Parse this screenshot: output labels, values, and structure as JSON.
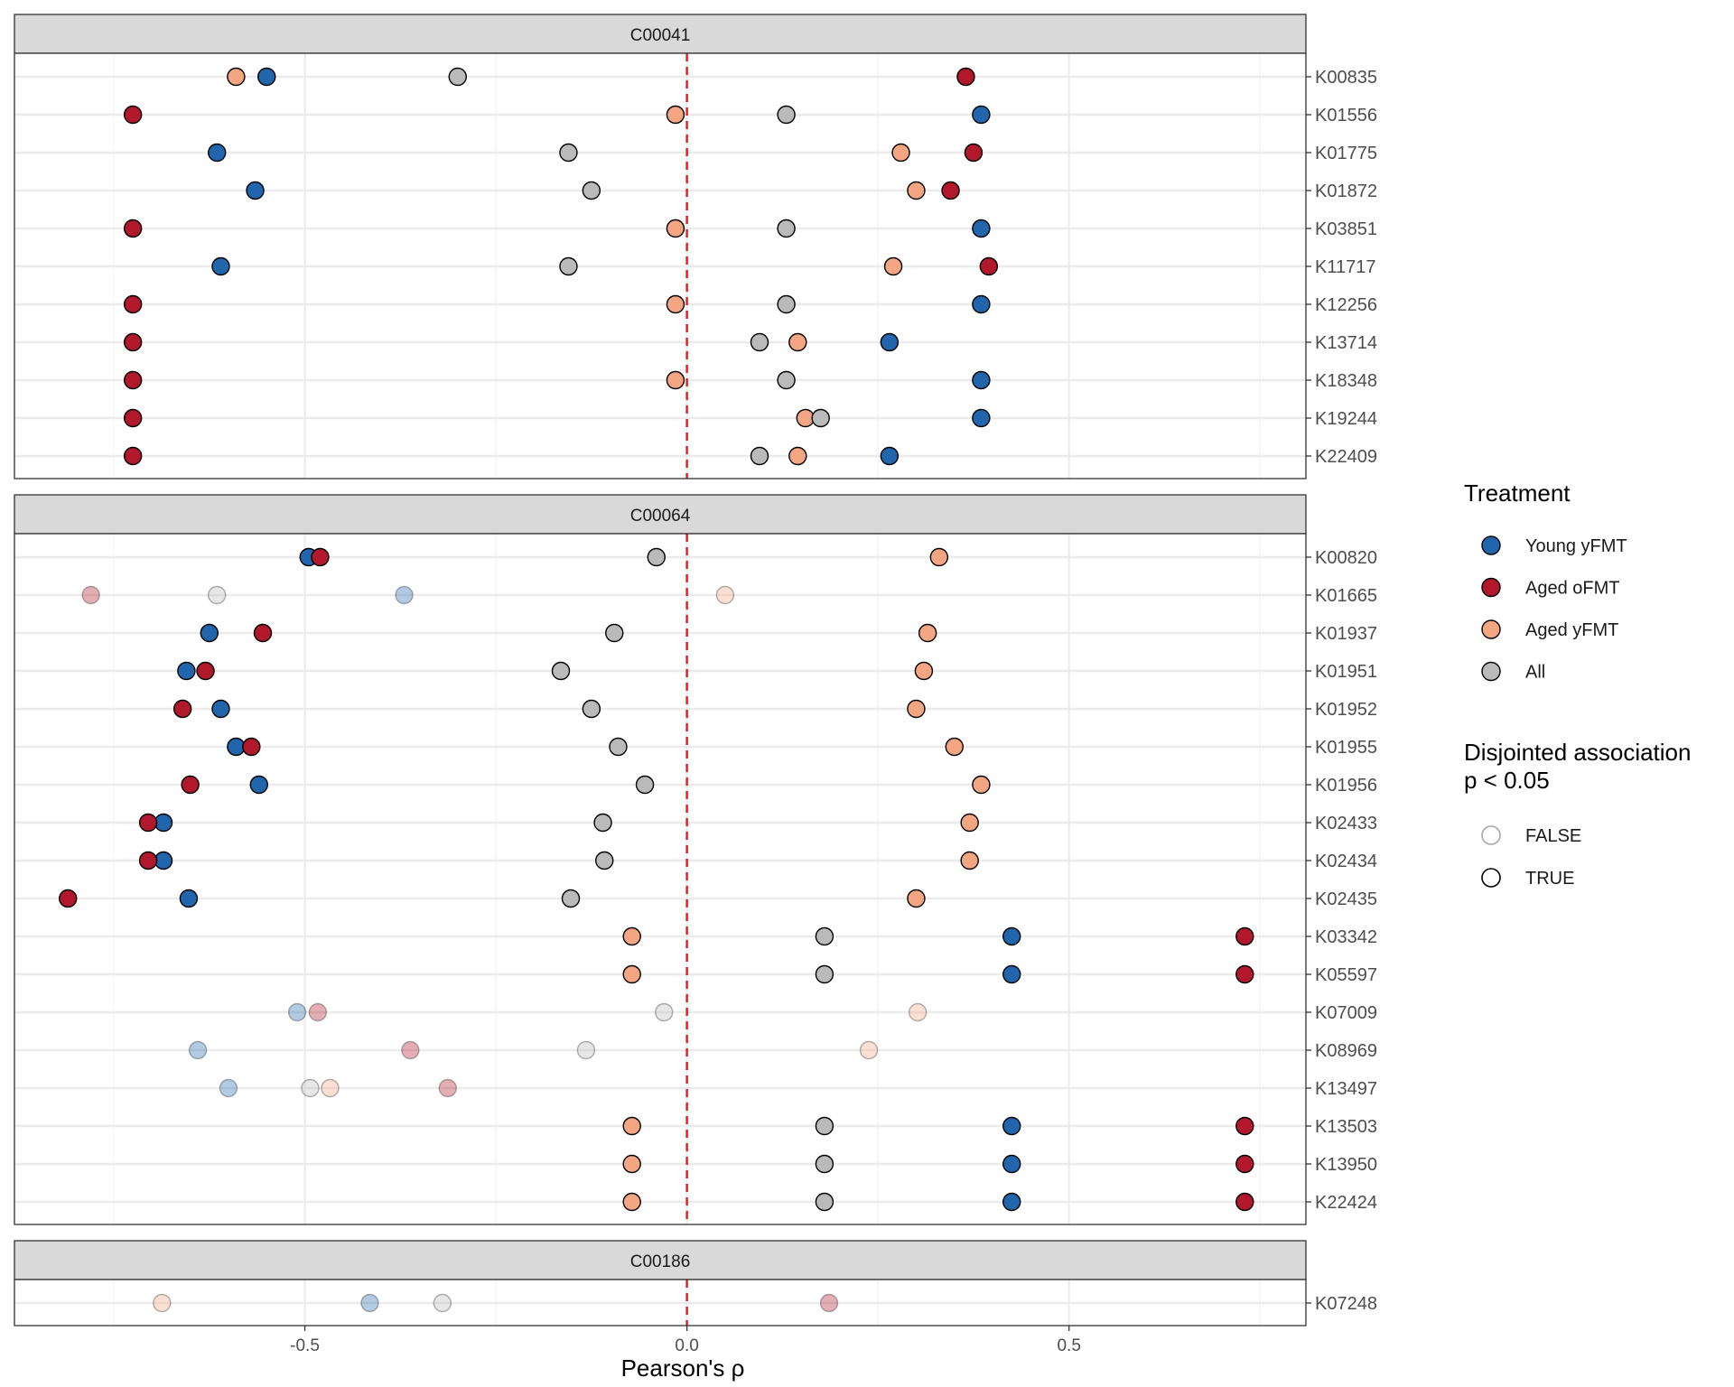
{
  "chart_data": {
    "type": "scatter",
    "xlabel": "Pearson's ρ",
    "xlim": [
      -0.88,
      0.81
    ],
    "x_ticks": [
      -0.5,
      0.0,
      0.5
    ],
    "x_tick_labels": [
      "-0.5",
      "0.0",
      "0.5"
    ],
    "reference_line": {
      "x": 0,
      "color": "#e41a1c",
      "style": "dashed"
    },
    "legend": {
      "treatment_title": "Treatment",
      "treatment": [
        {
          "name": "Young yFMT",
          "color": "#2166ac"
        },
        {
          "name": "Aged oFMT",
          "color": "#b2182b"
        },
        {
          "name": "Aged yFMT",
          "color": "#f4a582"
        },
        {
          "name": "All",
          "color": "#bababa"
        }
      ],
      "sig_title_line1": "Disjointed association",
      "sig_title_line2": "p < 0.05",
      "sig": [
        {
          "name": "FALSE"
        },
        {
          "name": "TRUE"
        }
      ]
    },
    "panels": [
      {
        "title": "C00041",
        "rows": [
          {
            "label": "K00835",
            "sig": true,
            "yfmt": -0.55,
            "ofmt": 0.365,
            "ayfmt": -0.59,
            "all": -0.3
          },
          {
            "label": "K01556",
            "sig": true,
            "yfmt": 0.385,
            "ofmt": -0.725,
            "ayfmt": -0.015,
            "all": 0.13
          },
          {
            "label": "K01775",
            "sig": true,
            "yfmt": -0.615,
            "ofmt": 0.375,
            "ayfmt": 0.28,
            "all": -0.155
          },
          {
            "label": "K01872",
            "sig": true,
            "yfmt": -0.565,
            "ofmt": 0.345,
            "ayfmt": 0.3,
            "all": -0.125
          },
          {
            "label": "K03851",
            "sig": true,
            "yfmt": 0.385,
            "ofmt": -0.725,
            "ayfmt": -0.015,
            "all": 0.13
          },
          {
            "label": "K11717",
            "sig": true,
            "yfmt": -0.61,
            "ofmt": 0.395,
            "ayfmt": 0.27,
            "all": -0.155
          },
          {
            "label": "K12256",
            "sig": true,
            "yfmt": 0.385,
            "ofmt": -0.725,
            "ayfmt": -0.015,
            "all": 0.13
          },
          {
            "label": "K13714",
            "sig": true,
            "yfmt": 0.265,
            "ofmt": -0.725,
            "ayfmt": 0.145,
            "all": 0.095
          },
          {
            "label": "K18348",
            "sig": true,
            "yfmt": 0.385,
            "ofmt": -0.725,
            "ayfmt": -0.015,
            "all": 0.13
          },
          {
            "label": "K19244",
            "sig": true,
            "yfmt": 0.385,
            "ofmt": -0.725,
            "ayfmt": 0.155,
            "all": 0.175
          },
          {
            "label": "K22409",
            "sig": true,
            "yfmt": 0.265,
            "ofmt": -0.725,
            "ayfmt": 0.145,
            "all": 0.095
          }
        ]
      },
      {
        "title": "C00064",
        "rows": [
          {
            "label": "K00820",
            "sig": true,
            "yfmt": -0.495,
            "ofmt": -0.48,
            "ayfmt": 0.33,
            "all": -0.04
          },
          {
            "label": "K01665",
            "sig": false,
            "yfmt": -0.37,
            "ofmt": -0.78,
            "ayfmt": 0.05,
            "all": -0.615
          },
          {
            "label": "K01937",
            "sig": true,
            "yfmt": -0.625,
            "ofmt": -0.555,
            "ayfmt": 0.315,
            "all": -0.095
          },
          {
            "label": "K01951",
            "sig": true,
            "yfmt": -0.655,
            "ofmt": -0.63,
            "ayfmt": 0.31,
            "all": -0.165
          },
          {
            "label": "K01952",
            "sig": true,
            "yfmt": -0.61,
            "ofmt": -0.66,
            "ayfmt": 0.3,
            "all": -0.125
          },
          {
            "label": "K01955",
            "sig": true,
            "yfmt": -0.59,
            "ofmt": -0.57,
            "ayfmt": 0.35,
            "all": -0.09
          },
          {
            "label": "K01956",
            "sig": true,
            "yfmt": -0.56,
            "ofmt": -0.65,
            "ayfmt": 0.385,
            "all": -0.055
          },
          {
            "label": "K02433",
            "sig": true,
            "yfmt": -0.685,
            "ofmt": -0.705,
            "ayfmt": 0.37,
            "all": -0.11
          },
          {
            "label": "K02434",
            "sig": true,
            "yfmt": -0.685,
            "ofmt": -0.705,
            "ayfmt": 0.37,
            "all": -0.108
          },
          {
            "label": "K02435",
            "sig": true,
            "yfmt": -0.652,
            "ofmt": -0.81,
            "ayfmt": 0.3,
            "all": -0.152
          },
          {
            "label": "K03342",
            "sig": true,
            "yfmt": 0.425,
            "ofmt": 0.73,
            "ayfmt": -0.072,
            "all": 0.18
          },
          {
            "label": "K05597",
            "sig": true,
            "yfmt": 0.425,
            "ofmt": 0.73,
            "ayfmt": -0.072,
            "all": 0.18
          },
          {
            "label": "K07009",
            "sig": false,
            "yfmt": -0.51,
            "ofmt": -0.483,
            "ayfmt": 0.302,
            "all": -0.03
          },
          {
            "label": "K08969",
            "sig": false,
            "yfmt": -0.64,
            "ofmt": -0.362,
            "ayfmt": 0.238,
            "all": -0.132
          },
          {
            "label": "K13497",
            "sig": false,
            "yfmt": -0.6,
            "ofmt": -0.313,
            "ayfmt": -0.467,
            "all": -0.493
          },
          {
            "label": "K13503",
            "sig": true,
            "yfmt": 0.425,
            "ofmt": 0.73,
            "ayfmt": -0.072,
            "all": 0.18
          },
          {
            "label": "K13950",
            "sig": true,
            "yfmt": 0.425,
            "ofmt": 0.73,
            "ayfmt": -0.072,
            "all": 0.18
          },
          {
            "label": "K22424",
            "sig": true,
            "yfmt": 0.425,
            "ofmt": 0.73,
            "ayfmt": -0.072,
            "all": 0.18
          }
        ]
      },
      {
        "title": "C00186",
        "rows": [
          {
            "label": "K07248",
            "sig": false,
            "yfmt": -0.415,
            "ofmt": 0.186,
            "ayfmt": -0.687,
            "all": -0.32
          }
        ]
      }
    ]
  }
}
